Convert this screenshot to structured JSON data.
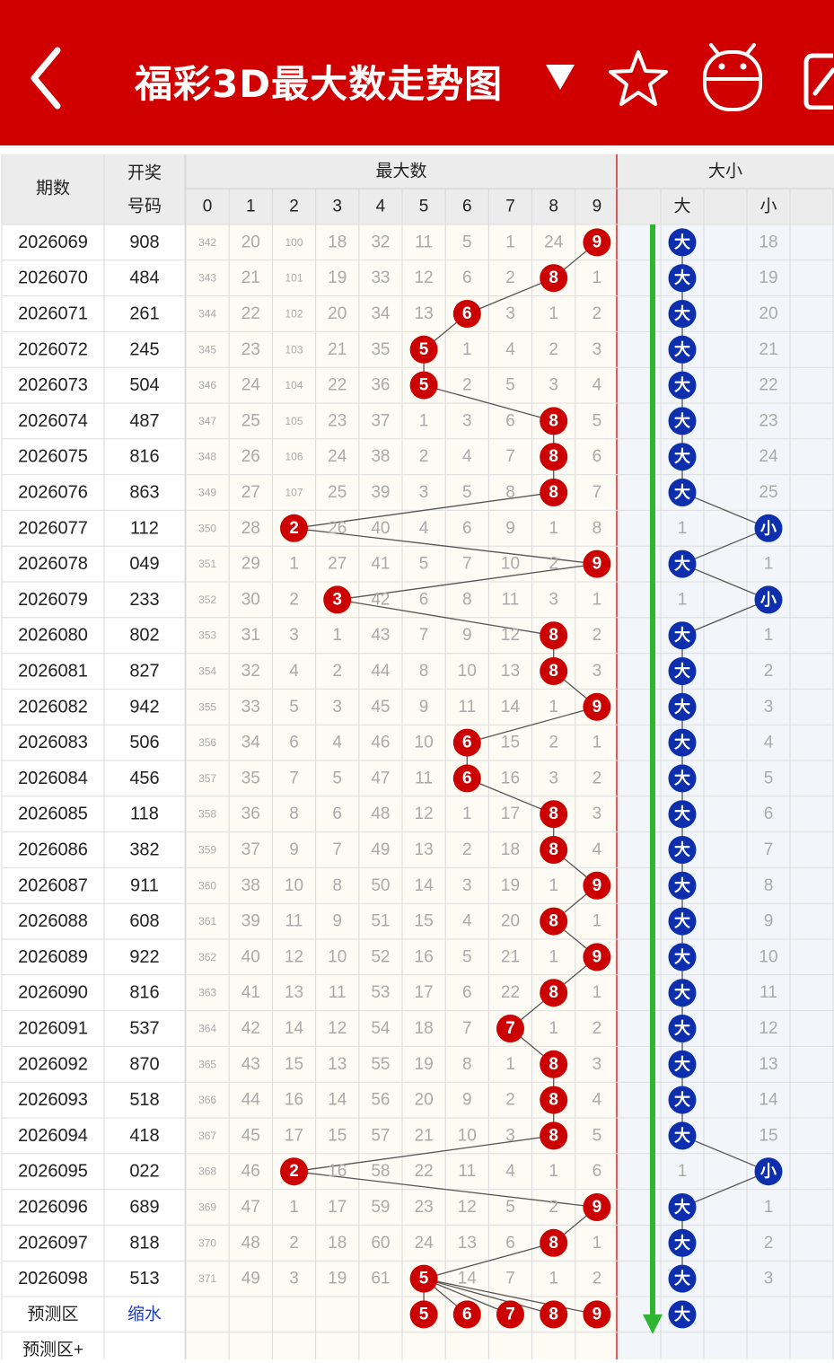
{
  "header": {
    "title": "福彩3D最大数走势图",
    "dropdown_icon": "triangle-down-icon",
    "icons": [
      "back-arrow-icon",
      "star-icon",
      "robot-icon",
      "edit-icon"
    ],
    "color": "#d00000"
  },
  "table": {
    "col_period": "期数",
    "col_draw_line1": "开奖",
    "col_draw_line2": "号码",
    "group_max": "最大数",
    "group_size": "大小",
    "digits": [
      "0",
      "1",
      "2",
      "3",
      "4",
      "5",
      "6",
      "7",
      "8",
      "9"
    ],
    "size_labels": [
      "大",
      "小"
    ],
    "rows": [
      {
        "period": "2026069",
        "draw": "908",
        "cells": [
          "342",
          "20",
          "100",
          "18",
          "32",
          "11",
          "5",
          "1",
          "24",
          "9"
        ],
        "max": 9,
        "big": "大",
        "small": "18",
        "size": "大"
      },
      {
        "period": "2026070",
        "draw": "484",
        "cells": [
          "343",
          "21",
          "101",
          "19",
          "33",
          "12",
          "6",
          "2",
          "8",
          "1"
        ],
        "max": 8,
        "big": "大",
        "small": "19",
        "size": "大"
      },
      {
        "period": "2026071",
        "draw": "261",
        "cells": [
          "344",
          "22",
          "102",
          "20",
          "34",
          "13",
          "6",
          "3",
          "1",
          "2"
        ],
        "max": 6,
        "big": "大",
        "small": "20",
        "size": "大"
      },
      {
        "period": "2026072",
        "draw": "245",
        "cells": [
          "345",
          "23",
          "103",
          "21",
          "35",
          "5",
          "1",
          "4",
          "2",
          "3"
        ],
        "max": 5,
        "big": "大",
        "small": "21",
        "size": "大"
      },
      {
        "period": "2026073",
        "draw": "504",
        "cells": [
          "346",
          "24",
          "104",
          "22",
          "36",
          "5",
          "2",
          "5",
          "3",
          "4"
        ],
        "max": 5,
        "big": "大",
        "small": "22",
        "size": "大"
      },
      {
        "period": "2026074",
        "draw": "487",
        "cells": [
          "347",
          "25",
          "105",
          "23",
          "37",
          "1",
          "3",
          "6",
          "8",
          "5"
        ],
        "max": 8,
        "big": "大",
        "small": "23",
        "size": "大"
      },
      {
        "period": "2026075",
        "draw": "816",
        "cells": [
          "348",
          "26",
          "106",
          "24",
          "38",
          "2",
          "4",
          "7",
          "8",
          "6"
        ],
        "max": 8,
        "big": "大",
        "small": "24",
        "size": "大"
      },
      {
        "period": "2026076",
        "draw": "863",
        "cells": [
          "349",
          "27",
          "107",
          "25",
          "39",
          "3",
          "5",
          "8",
          "8",
          "7"
        ],
        "max": 8,
        "big": "大",
        "small": "25",
        "size": "大"
      },
      {
        "period": "2026077",
        "draw": "112",
        "cells": [
          "350",
          "28",
          "2",
          "26",
          "40",
          "4",
          "6",
          "9",
          "1",
          "8"
        ],
        "max": 2,
        "big": "1",
        "small": "小",
        "size": "小"
      },
      {
        "period": "2026078",
        "draw": "049",
        "cells": [
          "351",
          "29",
          "1",
          "27",
          "41",
          "5",
          "7",
          "10",
          "2",
          "9"
        ],
        "max": 9,
        "big": "大",
        "small": "1",
        "size": "大"
      },
      {
        "period": "2026079",
        "draw": "233",
        "cells": [
          "352",
          "30",
          "2",
          "3",
          "42",
          "6",
          "8",
          "11",
          "3",
          "1"
        ],
        "max": 3,
        "big": "1",
        "small": "小",
        "size": "小"
      },
      {
        "period": "2026080",
        "draw": "802",
        "cells": [
          "353",
          "31",
          "3",
          "1",
          "43",
          "7",
          "9",
          "12",
          "8",
          "2"
        ],
        "max": 8,
        "big": "大",
        "small": "1",
        "size": "大"
      },
      {
        "period": "2026081",
        "draw": "827",
        "cells": [
          "354",
          "32",
          "4",
          "2",
          "44",
          "8",
          "10",
          "13",
          "8",
          "3"
        ],
        "max": 8,
        "big": "大",
        "small": "2",
        "size": "大"
      },
      {
        "period": "2026082",
        "draw": "942",
        "cells": [
          "355",
          "33",
          "5",
          "3",
          "45",
          "9",
          "11",
          "14",
          "1",
          "9"
        ],
        "max": 9,
        "big": "大",
        "small": "3",
        "size": "大"
      },
      {
        "period": "2026083",
        "draw": "506",
        "cells": [
          "356",
          "34",
          "6",
          "4",
          "46",
          "10",
          "6",
          "15",
          "2",
          "1"
        ],
        "max": 6,
        "big": "大",
        "small": "4",
        "size": "大"
      },
      {
        "period": "2026084",
        "draw": "456",
        "cells": [
          "357",
          "35",
          "7",
          "5",
          "47",
          "11",
          "6",
          "16",
          "3",
          "2"
        ],
        "max": 6,
        "big": "大",
        "small": "5",
        "size": "大"
      },
      {
        "period": "2026085",
        "draw": "118",
        "cells": [
          "358",
          "36",
          "8",
          "6",
          "48",
          "12",
          "1",
          "17",
          "8",
          "3"
        ],
        "max": 8,
        "big": "大",
        "small": "6",
        "size": "大"
      },
      {
        "period": "2026086",
        "draw": "382",
        "cells": [
          "359",
          "37",
          "9",
          "7",
          "49",
          "13",
          "2",
          "18",
          "8",
          "4"
        ],
        "max": 8,
        "big": "大",
        "small": "7",
        "size": "大"
      },
      {
        "period": "2026087",
        "draw": "911",
        "cells": [
          "360",
          "38",
          "10",
          "8",
          "50",
          "14",
          "3",
          "19",
          "1",
          "9"
        ],
        "max": 9,
        "big": "大",
        "small": "8",
        "size": "大"
      },
      {
        "period": "2026088",
        "draw": "608",
        "cells": [
          "361",
          "39",
          "11",
          "9",
          "51",
          "15",
          "4",
          "20",
          "8",
          "1"
        ],
        "max": 8,
        "big": "大",
        "small": "9",
        "size": "大"
      },
      {
        "period": "2026089",
        "draw": "922",
        "cells": [
          "362",
          "40",
          "12",
          "10",
          "52",
          "16",
          "5",
          "21",
          "1",
          "9"
        ],
        "max": 9,
        "big": "大",
        "small": "10",
        "size": "大"
      },
      {
        "period": "2026090",
        "draw": "816",
        "cells": [
          "363",
          "41",
          "13",
          "11",
          "53",
          "17",
          "6",
          "22",
          "8",
          "1"
        ],
        "max": 8,
        "big": "大",
        "small": "11",
        "size": "大"
      },
      {
        "period": "2026091",
        "draw": "537",
        "cells": [
          "364",
          "42",
          "14",
          "12",
          "54",
          "18",
          "7",
          "7",
          "1",
          "2"
        ],
        "max": 7,
        "big": "大",
        "small": "12",
        "size": "大"
      },
      {
        "period": "2026092",
        "draw": "870",
        "cells": [
          "365",
          "43",
          "15",
          "13",
          "55",
          "19",
          "8",
          "1",
          "8",
          "3"
        ],
        "max": 8,
        "big": "大",
        "small": "13",
        "size": "大"
      },
      {
        "period": "2026093",
        "draw": "518",
        "cells": [
          "366",
          "44",
          "16",
          "14",
          "56",
          "20",
          "9",
          "2",
          "8",
          "4"
        ],
        "max": 8,
        "big": "大",
        "small": "14",
        "size": "大"
      },
      {
        "period": "2026094",
        "draw": "418",
        "cells": [
          "367",
          "45",
          "17",
          "15",
          "57",
          "21",
          "10",
          "3",
          "8",
          "5"
        ],
        "max": 8,
        "big": "大",
        "small": "15",
        "size": "大"
      },
      {
        "period": "2026095",
        "draw": "022",
        "cells": [
          "368",
          "46",
          "2",
          "16",
          "58",
          "22",
          "11",
          "4",
          "1",
          "6"
        ],
        "max": 2,
        "big": "1",
        "small": "小",
        "size": "小"
      },
      {
        "period": "2026096",
        "draw": "689",
        "cells": [
          "369",
          "47",
          "1",
          "17",
          "59",
          "23",
          "12",
          "5",
          "2",
          "9"
        ],
        "max": 9,
        "big": "大",
        "small": "1",
        "size": "大"
      },
      {
        "period": "2026097",
        "draw": "818",
        "cells": [
          "370",
          "48",
          "2",
          "18",
          "60",
          "24",
          "13",
          "6",
          "8",
          "1"
        ],
        "max": 8,
        "big": "大",
        "small": "2",
        "size": "大"
      },
      {
        "period": "2026098",
        "draw": "513",
        "cells": [
          "371",
          "49",
          "3",
          "19",
          "61",
          "5",
          "14",
          "7",
          "1",
          "2"
        ],
        "max": 5,
        "big": "大",
        "small": "3",
        "size": "大"
      }
    ],
    "predict": {
      "label": "预测区",
      "link": "缩水",
      "digits": [
        "5",
        "6",
        "7",
        "8",
        "9"
      ],
      "size": "大"
    },
    "predict_plus": "预测区+",
    "colors": {
      "ball_red": "#cc0000",
      "ball_blue": "#0d2fae",
      "line": "#555555",
      "arrow": "#2fb52f",
      "header_bg": "#ececec",
      "miss_text": "#aaaaaa"
    }
  }
}
